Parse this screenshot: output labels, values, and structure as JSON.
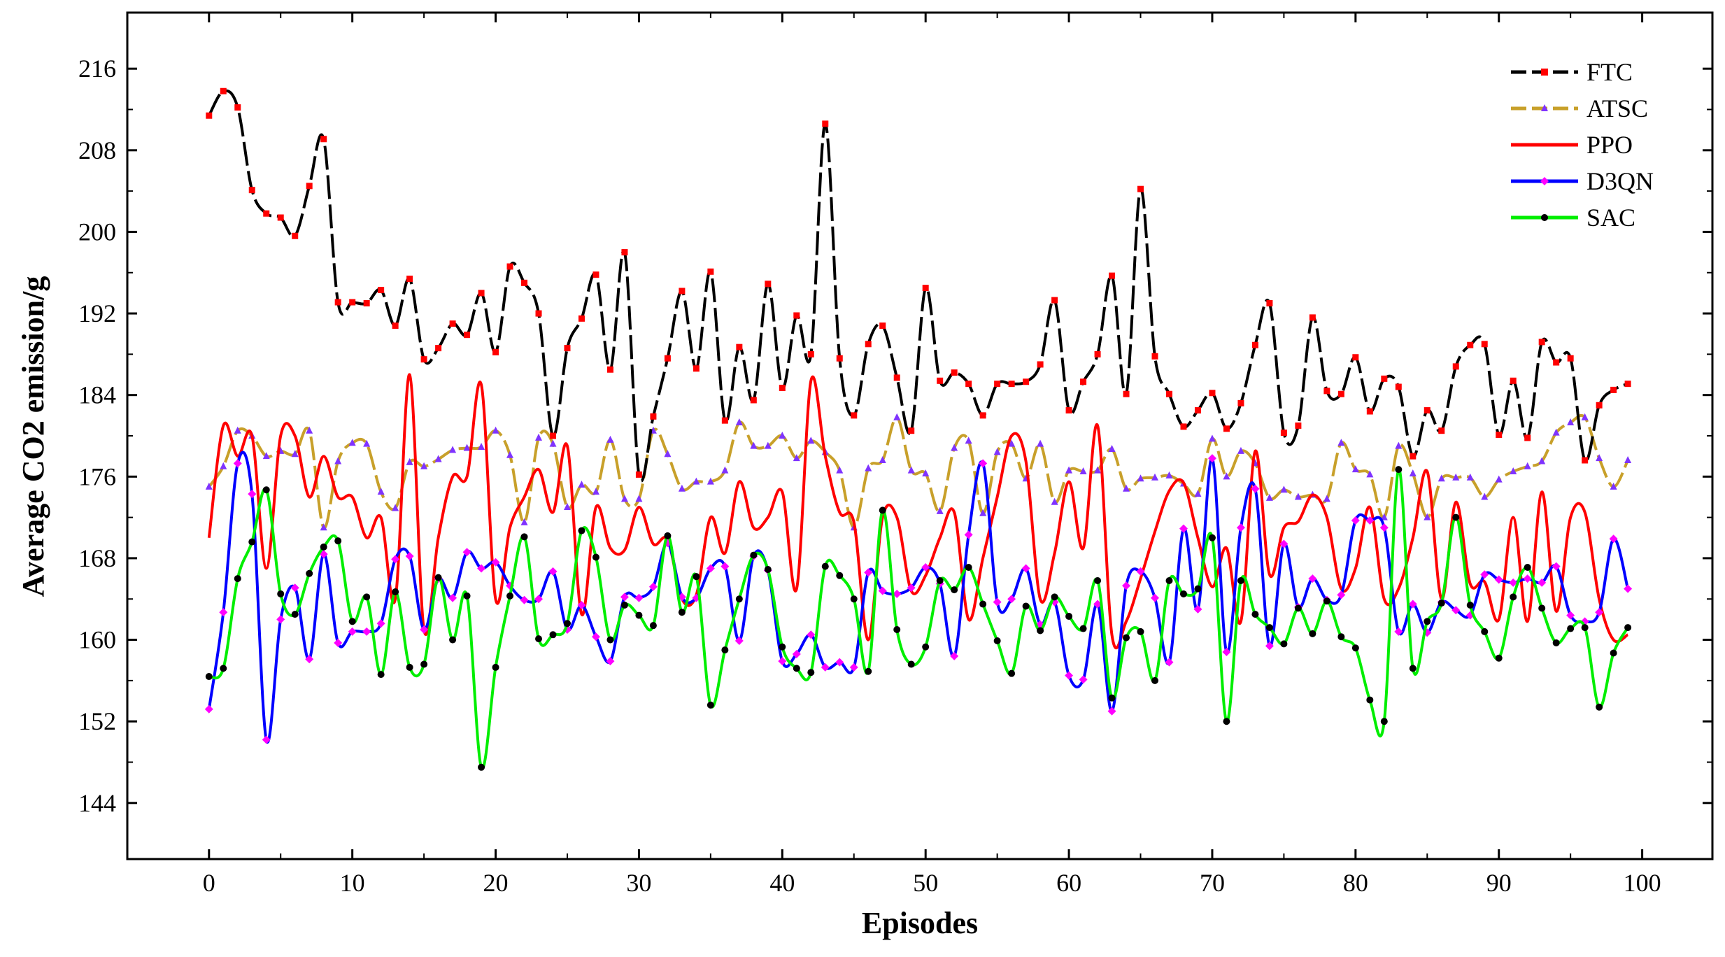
{
  "chart_data": {
    "type": "line",
    "title": "",
    "xlabel": "Episodes",
    "ylabel": "Average CO2 emission/g",
    "xlim": [
      -5.7,
      104.9
    ],
    "ylim": [
      138.5,
      221.5
    ],
    "x_ticks": [
      0,
      10,
      20,
      30,
      40,
      50,
      60,
      70,
      80,
      90,
      100
    ],
    "y_ticks": [
      144,
      152,
      160,
      168,
      176,
      184,
      192,
      200,
      208,
      216
    ],
    "grid": false,
    "legend_position": "top-right",
    "x": [
      0,
      1,
      2,
      3,
      4,
      5,
      6,
      7,
      8,
      9,
      10,
      11,
      12,
      13,
      14,
      15,
      16,
      17,
      18,
      19,
      20,
      21,
      22,
      23,
      24,
      25,
      26,
      27,
      28,
      29,
      30,
      31,
      32,
      33,
      34,
      35,
      36,
      37,
      38,
      39,
      40,
      41,
      42,
      43,
      44,
      45,
      46,
      47,
      48,
      49,
      50,
      51,
      52,
      53,
      54,
      55,
      56,
      57,
      58,
      59,
      60,
      61,
      62,
      63,
      64,
      65,
      66,
      67,
      68,
      69,
      70,
      71,
      72,
      73,
      74,
      75,
      76,
      77,
      78,
      79,
      80,
      81,
      82,
      83,
      84,
      85,
      86,
      87,
      88,
      89,
      90,
      91,
      92,
      93,
      94,
      95,
      96,
      97,
      98,
      99
    ],
    "series": [
      {
        "name": "FTC",
        "color": "#000000",
        "marker_color": "#ff0000",
        "marker": "square",
        "dashed": true,
        "values": [
          211.4,
          213.8,
          212.2,
          204.1,
          201.8,
          201.4,
          199.6,
          204.5,
          209.1,
          193.1,
          193.1,
          193.0,
          194.3,
          190.8,
          195.4,
          187.5,
          188.6,
          191.0,
          189.9,
          194.0,
          188.2,
          196.6,
          195.0,
          192.0,
          180.0,
          188.6,
          191.5,
          195.8,
          186.5,
          198.0,
          176.2,
          181.9,
          187.6,
          194.2,
          186.6,
          196.1,
          181.5,
          188.7,
          183.5,
          194.9,
          184.7,
          191.8,
          188.0,
          210.6,
          187.6,
          182.0,
          189.0,
          190.8,
          185.7,
          180.5,
          194.5,
          185.4,
          186.2,
          185.1,
          182.0,
          185.1,
          185.1,
          185.3,
          187.0,
          193.3,
          182.5,
          185.3,
          188.0,
          195.7,
          184.1,
          204.2,
          187.8,
          184.1,
          180.9,
          182.5,
          184.2,
          180.7,
          183.2,
          188.9,
          193.0,
          180.3,
          181.0,
          191.6,
          184.4,
          184.1,
          187.7,
          182.4,
          185.6,
          184.8,
          178.0,
          182.5,
          180.5,
          186.8,
          188.9,
          189.0,
          180.1,
          185.4,
          179.8,
          189.2,
          187.2,
          187.6,
          177.6,
          183.0,
          184.5,
          185.1
        ]
      },
      {
        "name": "ATSC",
        "color": "#c8a02a",
        "marker_color": "#7f33ff",
        "marker": "triangle",
        "dashed": true,
        "values": [
          175.0,
          177.0,
          180.5,
          180.0,
          178.0,
          178.5,
          178.2,
          180.5,
          171.0,
          177.5,
          179.3,
          179.2,
          174.5,
          172.9,
          177.4,
          177.0,
          177.7,
          178.6,
          178.8,
          178.9,
          180.5,
          178.1,
          171.5,
          179.8,
          179.2,
          173.0,
          175.2,
          174.5,
          179.6,
          173.8,
          173.8,
          180.5,
          178.2,
          174.8,
          175.5,
          175.5,
          176.6,
          181.3,
          179.0,
          179.0,
          180.0,
          177.8,
          179.5,
          178.4,
          176.6,
          171.0,
          176.8,
          177.6,
          181.8,
          176.6,
          176.3,
          172.6,
          178.8,
          179.5,
          172.4,
          178.4,
          179.2,
          175.8,
          179.2,
          173.5,
          176.6,
          176.5,
          176.6,
          178.7,
          174.8,
          175.8,
          175.9,
          176.1,
          175.3,
          174.3,
          179.7,
          176.0,
          178.5,
          177.3,
          173.9,
          174.7,
          174.0,
          174.2,
          173.8,
          179.3,
          176.7,
          176.2,
          172.0,
          179.0,
          176.3,
          172.0,
          175.8,
          175.9,
          175.9,
          174.0,
          175.7,
          176.5,
          177.0,
          177.5,
          180.3,
          181.3,
          181.8,
          177.8,
          175.0,
          177.6
        ]
      },
      {
        "name": "PPO",
        "color": "#ff0000",
        "marker": "none",
        "dashed": false,
        "values": [
          170.0,
          181.0,
          178.0,
          180.0,
          167.0,
          180.0,
          180.0,
          174.0,
          178.0,
          174.0,
          174.0,
          170.0,
          172.0,
          164.0,
          186.0,
          161.0,
          170.0,
          176.0,
          176.0,
          185.0,
          164.0,
          171.0,
          174.0,
          176.7,
          172.5,
          179.0,
          162.5,
          173.0,
          169.0,
          168.8,
          173.0,
          169.4,
          169.8,
          164.0,
          164.4,
          172.0,
          168.5,
          175.5,
          171.0,
          172.0,
          174.5,
          165.0,
          185.4,
          178.0,
          172.5,
          171.5,
          160.0,
          172.0,
          172.0,
          164.8,
          166.3,
          170.0,
          172.5,
          162.0,
          168.0,
          174.0,
          180.0,
          177.5,
          164.0,
          168.5,
          175.5,
          169.0,
          181.0,
          160.5,
          161.8,
          166.0,
          170.6,
          174.6,
          175.4,
          170.0,
          165.2,
          169.0,
          161.8,
          178.5,
          166.4,
          171.0,
          171.6,
          174.2,
          172.0,
          165.0,
          167.0,
          173.0,
          164.0,
          165.0,
          170.0,
          176.5,
          164.0,
          173.5,
          165.5,
          165.7,
          162.0,
          172.0,
          161.8,
          174.5,
          162.8,
          172.0,
          172.5,
          164.0,
          160.0,
          160.5
        ]
      },
      {
        "name": "D3QN",
        "color": "#0000ff",
        "marker_color": "#ff00ff",
        "marker": "diamond",
        "dashed": false,
        "values": [
          153.2,
          162.7,
          177.3,
          174.3,
          150.2,
          162.0,
          165.1,
          158.1,
          168.4,
          159.7,
          160.8,
          160.8,
          161.6,
          167.9,
          168.2,
          161.0,
          166.0,
          164.1,
          168.6,
          167.0,
          167.6,
          165.3,
          163.9,
          164.0,
          166.7,
          161.0,
          163.4,
          160.3,
          157.9,
          164.2,
          164.1,
          165.2,
          169.5,
          164.2,
          164.1,
          167.0,
          167.2,
          159.9,
          168.2,
          166.8,
          157.9,
          158.6,
          160.5,
          157.3,
          157.8,
          157.3,
          166.6,
          164.8,
          164.5,
          165.1,
          167.1,
          165.5,
          158.4,
          170.3,
          177.3,
          163.7,
          164.0,
          167.0,
          161.5,
          163.7,
          156.5,
          156.1,
          163.5,
          153.0,
          165.3,
          166.7,
          164.1,
          157.8,
          170.9,
          163.0,
          177.8,
          158.8,
          171.0,
          174.8,
          159.4,
          169.4,
          163.2,
          166.0,
          163.9,
          164.4,
          171.7,
          171.7,
          171.0,
          160.8,
          163.5,
          160.7,
          163.7,
          162.9,
          162.4,
          166.4,
          165.9,
          165.6,
          166.0,
          165.6,
          167.2,
          162.4,
          161.8,
          162.7,
          169.9,
          165.0
        ]
      },
      {
        "name": "SAC",
        "color": "#00ee00",
        "marker_color": "#000000",
        "marker": "circle",
        "dashed": false,
        "values": [
          156.4,
          157.2,
          166.0,
          169.6,
          174.7,
          164.5,
          162.5,
          166.5,
          169.1,
          169.7,
          161.8,
          164.2,
          156.6,
          164.7,
          157.3,
          157.6,
          166.1,
          160.0,
          164.3,
          147.5,
          157.3,
          164.3,
          170.1,
          160.1,
          160.5,
          161.6,
          170.7,
          168.1,
          160.0,
          163.4,
          162.4,
          161.4,
          170.2,
          162.7,
          166.2,
          153.6,
          159.0,
          164.0,
          168.3,
          166.9,
          159.3,
          157.2,
          156.8,
          167.2,
          166.3,
          164.0,
          156.9,
          172.7,
          161.0,
          157.6,
          159.3,
          165.8,
          164.9,
          167.1,
          163.5,
          159.9,
          156.7,
          163.3,
          160.9,
          164.2,
          162.3,
          161.1,
          165.8,
          154.3,
          160.2,
          160.8,
          156.0,
          165.8,
          164.5,
          165.0,
          170.0,
          152.0,
          165.8,
          162.5,
          161.2,
          159.6,
          163.1,
          160.6,
          163.8,
          160.3,
          159.2,
          154.1,
          152.0,
          176.7,
          157.2,
          161.8,
          163.6,
          172.0,
          163.4,
          160.8,
          158.2,
          164.2,
          167.1,
          163.1,
          159.7,
          161.1,
          161.2,
          153.4,
          158.7,
          161.2
        ]
      }
    ]
  }
}
